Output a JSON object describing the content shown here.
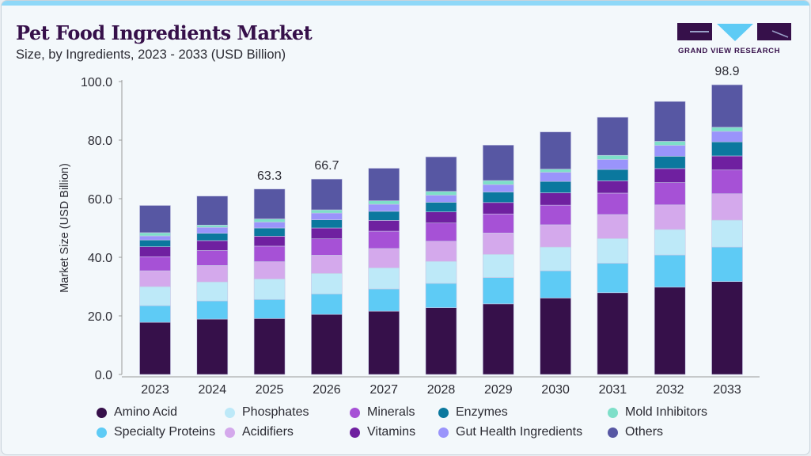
{
  "header": {
    "title": "Pet Food Ingredients Market",
    "subtitle": "Size, by Ingredients, 2023 - 2033 (USD Billion)",
    "logo_text": "GRAND VIEW RESEARCH"
  },
  "chart_data": {
    "type": "bar",
    "stacked": true,
    "title": "Pet Food Ingredients Market",
    "subtitle": "Size, by Ingredients, 2023 - 2033 (USD Billion)",
    "xlabel": "",
    "ylabel": "Market Size (USD Billion)",
    "ylim": [
      0,
      100
    ],
    "yticks": [
      "0.0",
      "20.0",
      "40.0",
      "60.0",
      "80.0",
      "100.0"
    ],
    "grid": false,
    "legend_position": "bottom",
    "categories": [
      "2023",
      "2024",
      "2025",
      "2026",
      "2027",
      "2028",
      "2029",
      "2030",
      "2031",
      "2032",
      "2033"
    ],
    "data_labels": {
      "2025": "63.3",
      "2026": "66.7",
      "2033": "98.9"
    },
    "series": [
      {
        "name": "Amino Acid",
        "color": "#36104a",
        "values": [
          17.8,
          18.9,
          19.1,
          20.5,
          21.6,
          22.8,
          24.1,
          26.1,
          27.9,
          29.8,
          31.7
        ]
      },
      {
        "name": "Specialty Proteins",
        "color": "#5ecbf5",
        "values": [
          5.7,
          6.2,
          6.5,
          7.0,
          7.6,
          8.3,
          9.0,
          9.3,
          10.1,
          11.0,
          11.8
        ]
      },
      {
        "name": "Phosphates",
        "color": "#bde9f8",
        "values": [
          6.5,
          6.5,
          7.0,
          7.0,
          7.2,
          7.5,
          7.9,
          8.1,
          8.4,
          8.7,
          9.2
        ]
      },
      {
        "name": "Acidifiers",
        "color": "#d4a9ec",
        "values": [
          5.4,
          5.6,
          5.9,
          6.2,
          6.6,
          6.9,
          7.3,
          7.6,
          8.2,
          8.4,
          9.0
        ]
      },
      {
        "name": "Minerals",
        "color": "#a651d6",
        "values": [
          4.8,
          5.1,
          5.3,
          5.6,
          5.9,
          6.2,
          6.5,
          6.7,
          7.3,
          7.6,
          8.1
        ]
      },
      {
        "name": "Vitamins",
        "color": "#6f20a0",
        "values": [
          3.4,
          3.4,
          3.4,
          3.7,
          3.7,
          3.8,
          3.9,
          4.2,
          4.2,
          4.8,
          4.8
        ]
      },
      {
        "name": "Enzymes",
        "color": "#0b789e",
        "values": [
          2.3,
          2.5,
          2.8,
          2.8,
          3.1,
          3.3,
          3.6,
          3.9,
          3.9,
          4.2,
          4.8
        ]
      },
      {
        "name": "Gut Health Ingredients",
        "color": "#9a94fb",
        "values": [
          1.4,
          2.0,
          2.0,
          2.3,
          2.4,
          2.4,
          2.5,
          3.1,
          3.4,
          3.7,
          3.6
        ]
      },
      {
        "name": "Mold Inhibitors",
        "color": "#7edfc9",
        "values": [
          1.1,
          0.8,
          1.1,
          1.1,
          1.2,
          1.3,
          1.4,
          1.1,
          1.4,
          1.4,
          1.4
        ]
      },
      {
        "name": "Others",
        "color": "#5757a3",
        "values": [
          9.3,
          9.9,
          10.2,
          10.5,
          11.1,
          11.8,
          12.1,
          12.7,
          13.0,
          13.6,
          14.5
        ]
      }
    ]
  }
}
